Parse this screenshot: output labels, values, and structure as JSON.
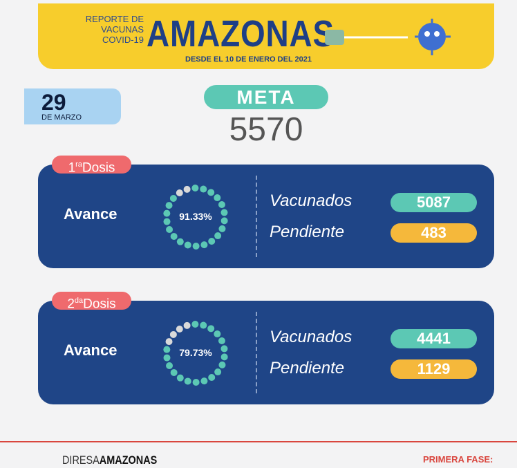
{
  "header": {
    "report_lines": [
      "REPORTE DE",
      "VACUNAS",
      "COVID-19"
    ],
    "title": "AMAZONAS",
    "subtitle": "DESDE EL 10 DE ENERO DEL 2021"
  },
  "date": {
    "day": "29",
    "month": "DE MARZO"
  },
  "goal": {
    "label": "META",
    "value": "5570"
  },
  "doses": [
    {
      "number": "1",
      "suffix": "ra",
      "word": "Dosis",
      "progress_label": "Avance",
      "percent": "91.33%",
      "vaccinated_label": "Vacunados",
      "vaccinated": "5087",
      "pending_label": "Pendiente",
      "pending": "483"
    },
    {
      "number": "2",
      "suffix": "da",
      "word": "Dosis",
      "progress_label": "Avance",
      "percent": "79.73%",
      "vaccinated_label": "Vacunados",
      "vaccinated": "4441",
      "pending_label": "Pendiente",
      "pending": "1129"
    }
  ],
  "footer": {
    "org_prefix": "DIRESA",
    "org_name": "AMAZONAS",
    "phase": "PRIMERA FASE:"
  }
}
